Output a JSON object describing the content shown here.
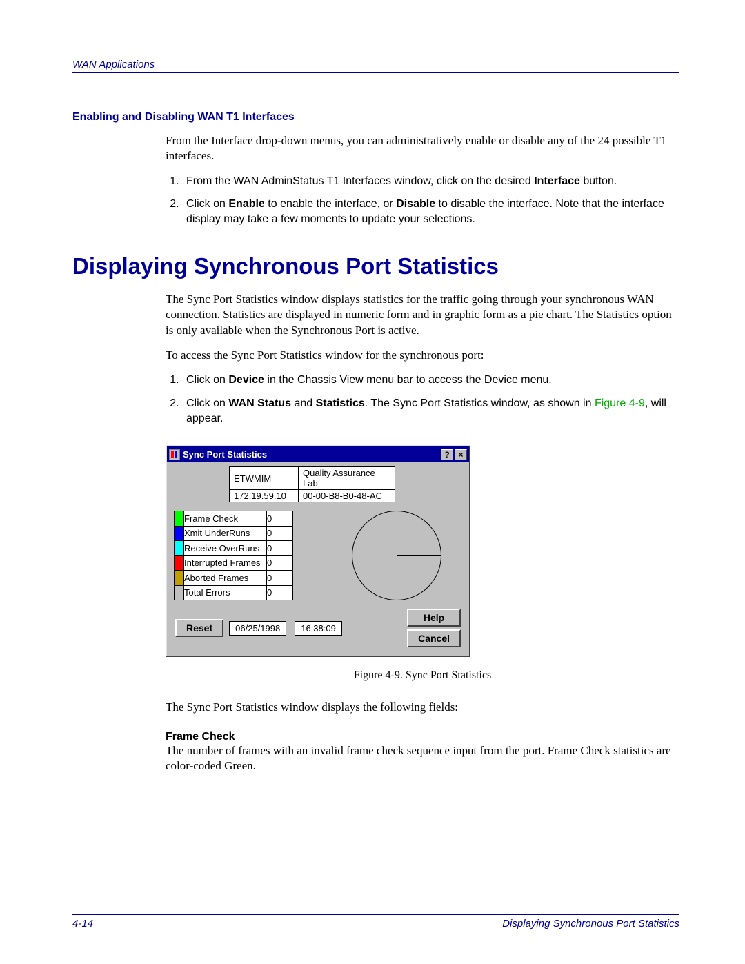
{
  "header": {
    "running": "WAN Applications"
  },
  "sec1": {
    "title": "Enabling and Disabling WAN T1 Interfaces",
    "intro": "From the Interface drop-down menus, you can administratively enable or disable any of the 24 possible T1 interfaces.",
    "step1a": "From the WAN AdminStatus T1 Interfaces window, click on the desired ",
    "step1b": "Interface",
    "step1c": " button.",
    "step2a": "Click on ",
    "step2b": "Enable",
    "step2c": " to enable the interface, or ",
    "step2d": "Disable",
    "step2e": " to disable the interface. Note that the interface display may take a few moments to update your selections."
  },
  "sec2": {
    "title": "Displaying Synchronous Port Statistics",
    "p1": "The Sync Port Statistics window displays statistics for the traffic going through your synchronous WAN connection. Statistics are displayed in numeric form and in graphic form as a pie chart. The Statistics option is only available when the Synchronous Port is active.",
    "p2": "To access the Sync Port Statistics window for the synchronous port:",
    "s1a": "Click on ",
    "s1b": "Device",
    "s1c": " in the Chassis View menu bar to access the Device menu.",
    "s2a": "Click on ",
    "s2b": "WAN Status",
    "s2c": " and ",
    "s2d": "Statistics",
    "s2e": ". The Sync Port Statistics window, as shown in ",
    "s2f": "Figure 4-9",
    "s2g": ", will appear."
  },
  "dialog": {
    "title": "Sync Port Statistics",
    "info": {
      "r1c1": "ETWMIM",
      "r1c2": "Quality Assurance Lab",
      "r2c1": "172.19.59.10",
      "r2c2": "00-00-B8-B0-48-AC"
    },
    "stats": [
      {
        "color": "#00ff00",
        "label": "Frame Check",
        "value": "0"
      },
      {
        "color": "#0000ff",
        "label": "Xmit UnderRuns",
        "value": "0"
      },
      {
        "color": "#00ffff",
        "label": "Receive OverRuns",
        "value": "0"
      },
      {
        "color": "#ff0000",
        "label": "Interrupted Frames",
        "value": "0"
      },
      {
        "color": "#c0a000",
        "label": "Aborted Frames",
        "value": "0"
      },
      {
        "color": "#c0c0c0",
        "label": "Total Errors",
        "value": "0"
      }
    ],
    "reset": "Reset",
    "help": "Help",
    "cancel": "Cancel",
    "date": "06/25/1998",
    "time": "16:38:09"
  },
  "figcap": "Figure 4-9.  Sync Port Statistics",
  "after": {
    "p1": "The Sync Port Statistics window displays the following fields:",
    "fh": "Frame Check",
    "fp": "The number of frames with an invalid frame check sequence input from the port. Frame Check statistics are color-coded Green."
  },
  "footer": {
    "left": "4-14",
    "right": "Displaying Synchronous Port Statistics"
  }
}
